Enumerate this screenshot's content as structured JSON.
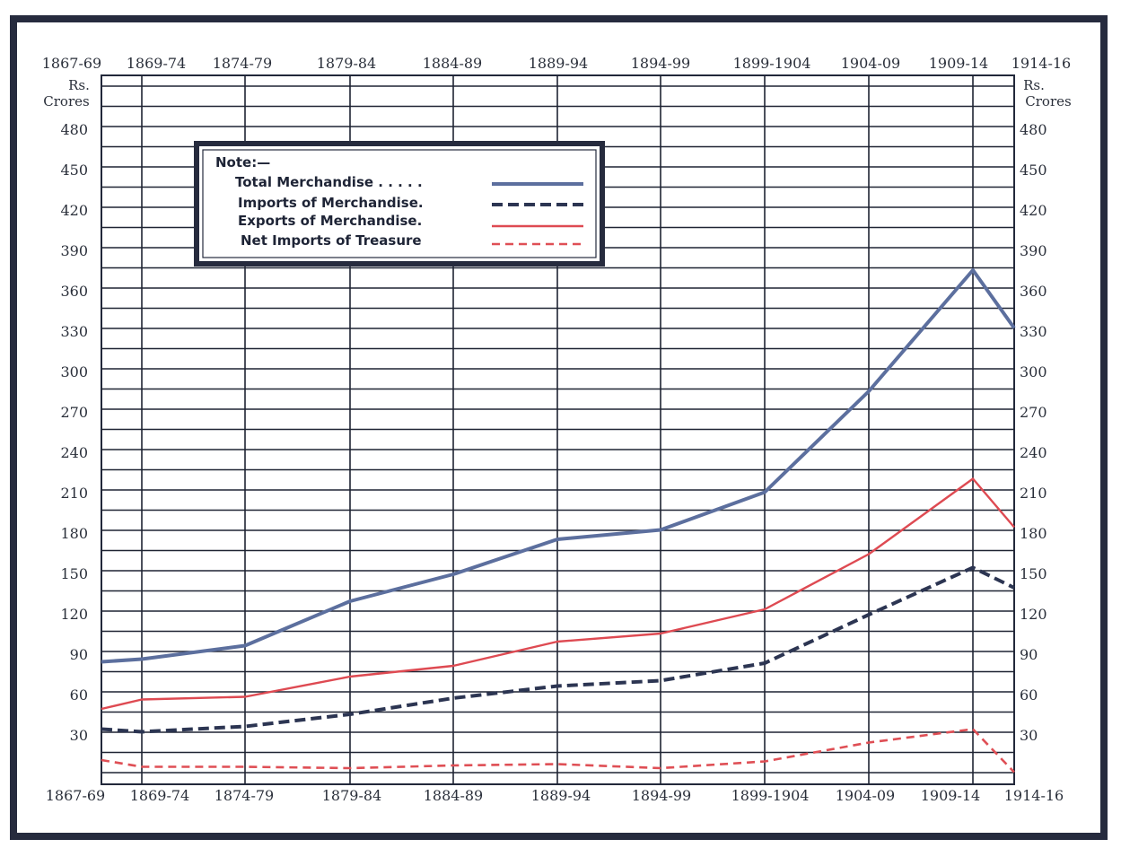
{
  "chart_data": {
    "type": "line",
    "categories": [
      "1867-69",
      "1869-74",
      "1874-79",
      "1879-84",
      "1884-89",
      "1889-94",
      "1894-99",
      "1899-1904",
      "1904-09",
      "1909-14",
      "1914-16"
    ],
    "top_tick_labels": [
      "1867-69",
      "1869-74",
      "1874-79",
      "1879-84",
      "1884-89",
      "1889-94",
      "1894-99",
      "1899-1904",
      "1904-09",
      "1909-14",
      "1914-16"
    ],
    "bottom_tick_labels": [
      "1867-69",
      "1869-74",
      "1874-79",
      "1879-84",
      "1884-89",
      "1889-94",
      "1894-99",
      "1899-1904",
      "1904-09",
      "1909-14",
      "1914-16"
    ],
    "y_unit_left": [
      "Rs.",
      "Crores"
    ],
    "y_unit_right": [
      "Rs.",
      "Crores"
    ],
    "y_ticks": [
      30,
      60,
      90,
      120,
      150,
      180,
      210,
      240,
      270,
      300,
      330,
      360,
      390,
      420,
      450,
      480
    ],
    "ylim": [
      0,
      500
    ],
    "grid": true,
    "legend": {
      "title": "Note:—",
      "placement": "top-left",
      "entries": [
        "Total Merchandise . . . . .",
        "Imports of Merchandise.",
        "Exports of Merchandise.",
        "Net Imports of Treasure"
      ]
    },
    "series": [
      {
        "name": "Total Merchandise",
        "color": "#5c6f9e",
        "style": "solid",
        "values": [
          85,
          87,
          97,
          130,
          150,
          176,
          183,
          211,
          286,
          376,
          333
        ]
      },
      {
        "name": "Imports of Merchandise",
        "color": "#2c3552",
        "style": "dashed",
        "values": [
          35,
          33,
          37,
          46,
          58,
          67,
          71,
          84,
          120,
          155,
          140
        ]
      },
      {
        "name": "Exports of Merchandise",
        "color": "#de4a52",
        "style": "solid",
        "values": [
          50,
          57,
          59,
          74,
          82,
          100,
          106,
          124,
          165,
          221,
          185
        ]
      },
      {
        "name": "Net Imports of Treasure",
        "color": "#df4f55",
        "style": "dashed",
        "values": [
          12,
          7,
          7,
          6,
          8,
          9,
          6,
          11,
          25,
          35,
          3
        ]
      }
    ]
  }
}
